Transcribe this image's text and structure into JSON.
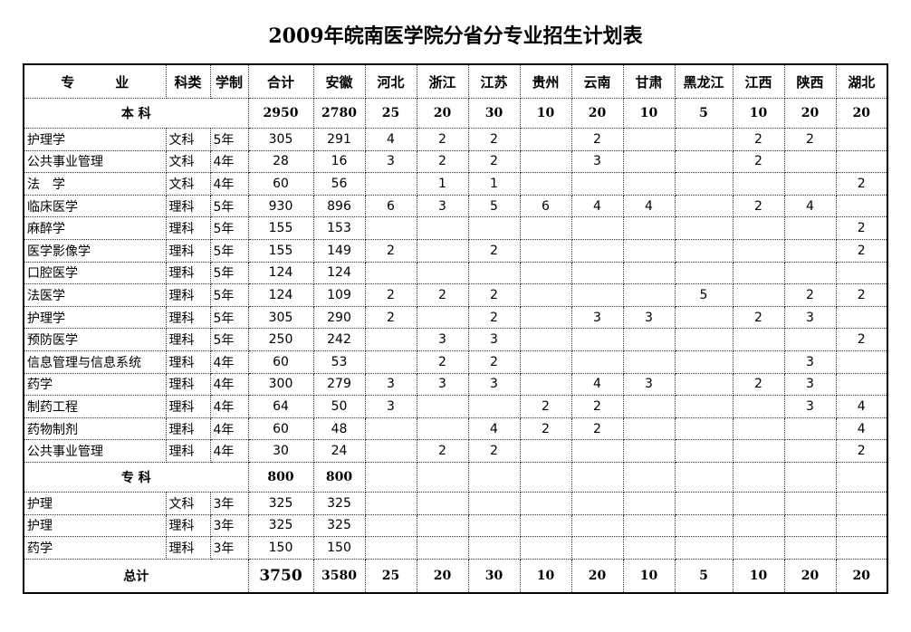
{
  "title": "2009年皖南医学院分省分专业招生计划表",
  "headers": [
    "专　　　业",
    "科类",
    "学制",
    "合计",
    "安徽",
    "河北",
    "浙江",
    "江苏",
    "贵州",
    "云南",
    "甘肃",
    "黑龙江",
    "江西",
    "陕西",
    "湖北"
  ],
  "sections": [
    {
      "label": "本 科",
      "totals": [
        "2950",
        "2780",
        "25",
        "20",
        "30",
        "10",
        "20",
        "10",
        "5",
        "10",
        "20",
        "20"
      ],
      "rows": [
        [
          "护理学",
          "文科",
          "5年",
          "305",
          "291",
          "4",
          "2",
          "2",
          "",
          "2",
          "",
          "",
          "2",
          "2",
          ""
        ],
        [
          "公共事业管理",
          "文科",
          "4年",
          "28",
          "16",
          "3",
          "2",
          "2",
          "",
          "3",
          "",
          "",
          "2",
          "",
          ""
        ],
        [
          "法　学",
          "文科",
          "4年",
          "60",
          "56",
          "",
          "1",
          "1",
          "",
          "",
          "",
          "",
          "",
          "",
          "2"
        ],
        [
          "临床医学",
          "理科",
          "5年",
          "930",
          "896",
          "6",
          "3",
          "5",
          "6",
          "4",
          "4",
          "",
          "2",
          "4",
          ""
        ],
        [
          "麻醉学",
          "理科",
          "5年",
          "155",
          "153",
          "",
          "",
          "",
          "",
          "",
          "",
          "",
          "",
          "",
          "2"
        ],
        [
          "医学影像学",
          "理科",
          "5年",
          "155",
          "149",
          "2",
          "",
          "2",
          "",
          "",
          "",
          "",
          "",
          "",
          "2"
        ],
        [
          "口腔医学",
          "理科",
          "5年",
          "124",
          "124",
          "",
          "",
          "",
          "",
          "",
          "",
          "",
          "",
          "",
          ""
        ],
        [
          "法医学",
          "理科",
          "5年",
          "124",
          "109",
          "2",
          "2",
          "2",
          "",
          "",
          "",
          "5",
          "",
          "2",
          "2"
        ],
        [
          "护理学",
          "理科",
          "5年",
          "305",
          "290",
          "2",
          "",
          "2",
          "",
          "3",
          "3",
          "",
          "2",
          "3",
          ""
        ],
        [
          "预防医学",
          "理科",
          "5年",
          "250",
          "242",
          "",
          "3",
          "3",
          "",
          "",
          "",
          "",
          "",
          "",
          "2"
        ],
        [
          "信息管理与信息系统",
          "理科",
          "4年",
          "60",
          "53",
          "",
          "2",
          "2",
          "",
          "",
          "",
          "",
          "",
          "3",
          ""
        ],
        [
          "药学",
          "理科",
          "4年",
          "300",
          "279",
          "3",
          "3",
          "3",
          "",
          "4",
          "3",
          "",
          "2",
          "3",
          ""
        ],
        [
          "制药工程",
          "理科",
          "4年",
          "64",
          "50",
          "3",
          "",
          "",
          "2",
          "2",
          "",
          "",
          "",
          "3",
          "4"
        ],
        [
          "药物制剂",
          "理科",
          "4年",
          "60",
          "48",
          "",
          "",
          "4",
          "2",
          "2",
          "",
          "",
          "",
          "",
          "4"
        ],
        [
          "公共事业管理",
          "理科",
          "4年",
          "30",
          "24",
          "",
          "2",
          "2",
          "",
          "",
          "",
          "",
          "",
          "",
          "2"
        ]
      ]
    },
    {
      "label": "专 科",
      "totals": [
        "800",
        "800",
        "",
        "",
        "",
        "",
        "",
        "",
        "",
        "",
        "",
        ""
      ],
      "rows": [
        [
          "护理",
          "文科",
          "3年",
          "325",
          "325",
          "",
          "",
          "",
          "",
          "",
          "",
          "",
          "",
          "",
          ""
        ],
        [
          "护理",
          "理科",
          "3年",
          "325",
          "325",
          "",
          "",
          "",
          "",
          "",
          "",
          "",
          "",
          "",
          ""
        ],
        [
          "药学",
          "理科",
          "3年",
          "150",
          "150",
          "",
          "",
          "",
          "",
          "",
          "",
          "",
          "",
          "",
          ""
        ]
      ]
    }
  ],
  "grand_total": {
    "label": "总计",
    "values": [
      "3750",
      "3580",
      "25",
      "20",
      "30",
      "10",
      "20",
      "10",
      "5",
      "10",
      "20",
      "20"
    ]
  }
}
